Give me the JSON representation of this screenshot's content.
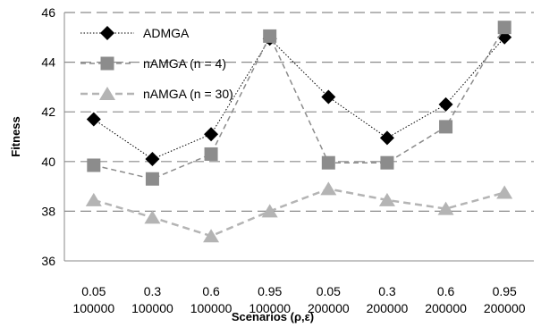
{
  "chart_data": {
    "type": "line",
    "title": "",
    "xlabel": "Scenarios (ρ,ε)",
    "ylabel": "Fitness",
    "ylim": [
      36,
      46
    ],
    "yticks": [
      36,
      38,
      40,
      42,
      44,
      46
    ],
    "grid": "horizontal dashed",
    "legend_position": "top-left",
    "categories": [
      [
        "0.05",
        "100000"
      ],
      [
        "0.3",
        "100000"
      ],
      [
        "0.6",
        "100000"
      ],
      [
        "0.95",
        "100000"
      ],
      [
        "0.05",
        "200000"
      ],
      [
        "0.3",
        "200000"
      ],
      [
        "0.6",
        "200000"
      ],
      [
        "0.95",
        "200000"
      ]
    ],
    "series": [
      {
        "name": "ADMGA",
        "marker": "diamond",
        "color": "#000000",
        "line": "dotted",
        "values": [
          41.7,
          40.1,
          41.1,
          44.95,
          42.6,
          40.95,
          42.3,
          45.0
        ]
      },
      {
        "name": "nAMGA (n = 4)",
        "marker": "square",
        "color": "#8c8c8c",
        "line": "dashed",
        "values": [
          39.85,
          39.3,
          40.3,
          45.05,
          39.95,
          39.95,
          41.4,
          45.4
        ]
      },
      {
        "name": "nAMGA (n = 30)",
        "marker": "triangle",
        "color": "#b4b4b4",
        "line": "dashed-thick",
        "values": [
          38.45,
          37.75,
          37.0,
          38.0,
          38.9,
          38.45,
          38.1,
          38.75
        ]
      }
    ]
  }
}
